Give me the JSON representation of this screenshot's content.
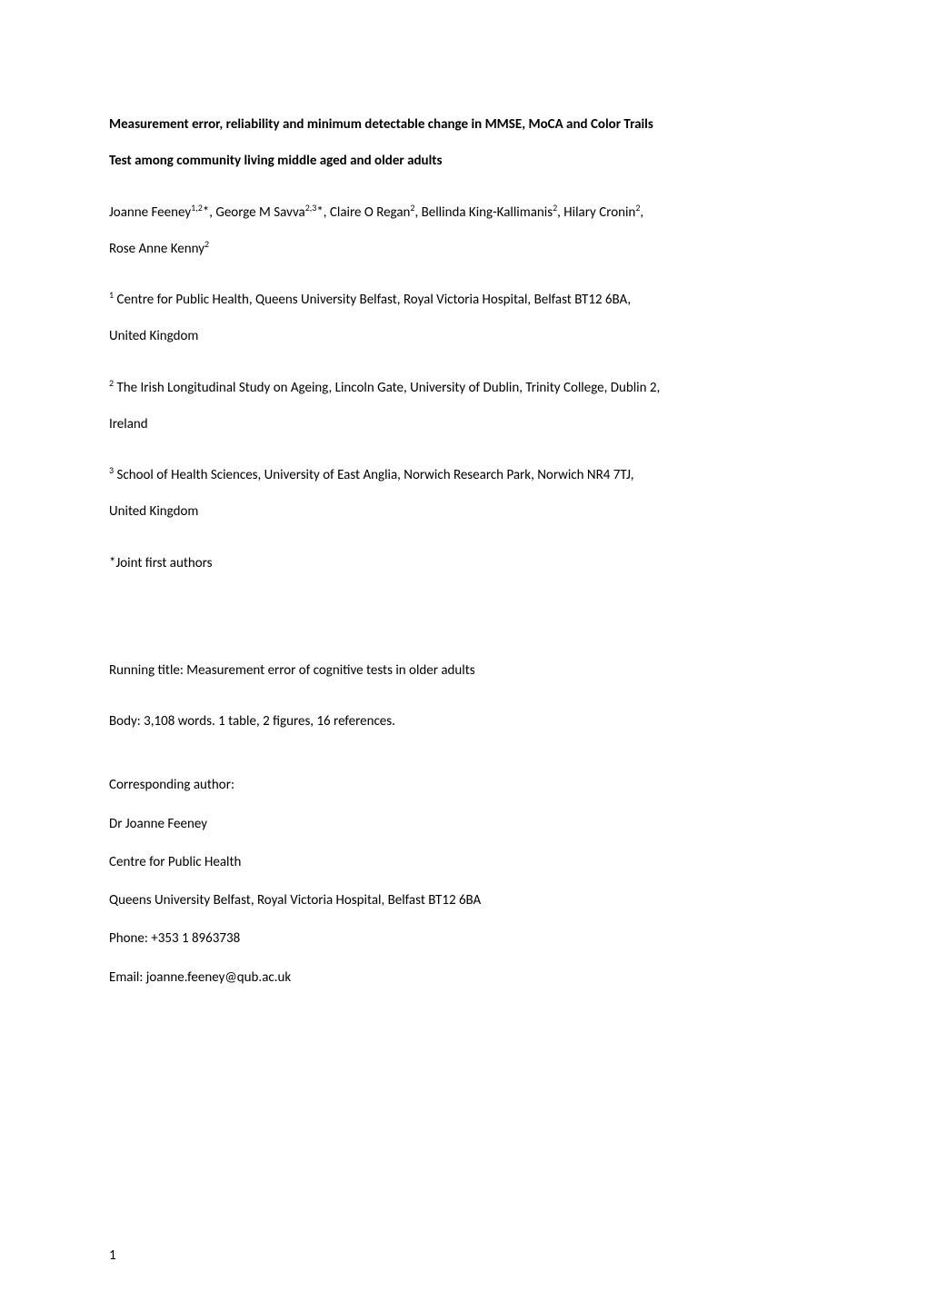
{
  "title_line1": "Measurement error, reliability and minimum detectable change in MMSE, MoCA and Color Trails",
  "title_line2": "Test among community living middle aged and older adults",
  "authors_prefix": "Joanne Feeney",
  "authors_sup1": "1,2",
  "authors_mid1": "*, George M Savva",
  "authors_sup2": "2,3",
  "authors_mid2": "*, Claire O Regan",
  "authors_sup3": "2",
  "authors_mid3": ", Bellinda King-Kallimanis",
  "authors_sup4": "2",
  "authors_mid4": ", Hilary Cronin",
  "authors_sup5": "2",
  "authors_mid5": ",",
  "authors_line2_prefix": "Rose Anne Kenny",
  "authors_line2_sup": "2",
  "aff1_sup": "1",
  "aff1_text_a": " Centre for Public Health, Queens University Belfast, Royal Victoria Hospital, Belfast BT12 6BA,",
  "aff1_text_b": "United Kingdom",
  "aff2_sup": "2",
  "aff2_text_a": " The Irish Longitudinal Study on Ageing, Lincoln Gate, University of Dublin, Trinity College, Dublin 2,",
  "aff2_text_b": "Ireland",
  "aff3_sup": "3",
  "aff3_text_a": " School of Health Sciences, University of East Anglia, Norwich Research Park, Norwich NR4 7TJ,",
  "aff3_text_b": "United Kingdom",
  "joint": "*Joint first authors",
  "running": "Running title: Measurement error of cognitive tests in older adults",
  "body_count": "Body: 3,108 words.  1 table, 2 figures, 16 references.",
  "corr_label": "Corresponding author:",
  "corr_name": "Dr Joanne Feeney",
  "corr_centre": "Centre for Public Health",
  "corr_addr": "Queens University Belfast, Royal Victoria Hospital, Belfast BT12 6BA",
  "corr_phone": "Phone: +353 1 8963738",
  "corr_email": "Email: joanne.feeney@qub.ac.uk",
  "page_number": "1"
}
